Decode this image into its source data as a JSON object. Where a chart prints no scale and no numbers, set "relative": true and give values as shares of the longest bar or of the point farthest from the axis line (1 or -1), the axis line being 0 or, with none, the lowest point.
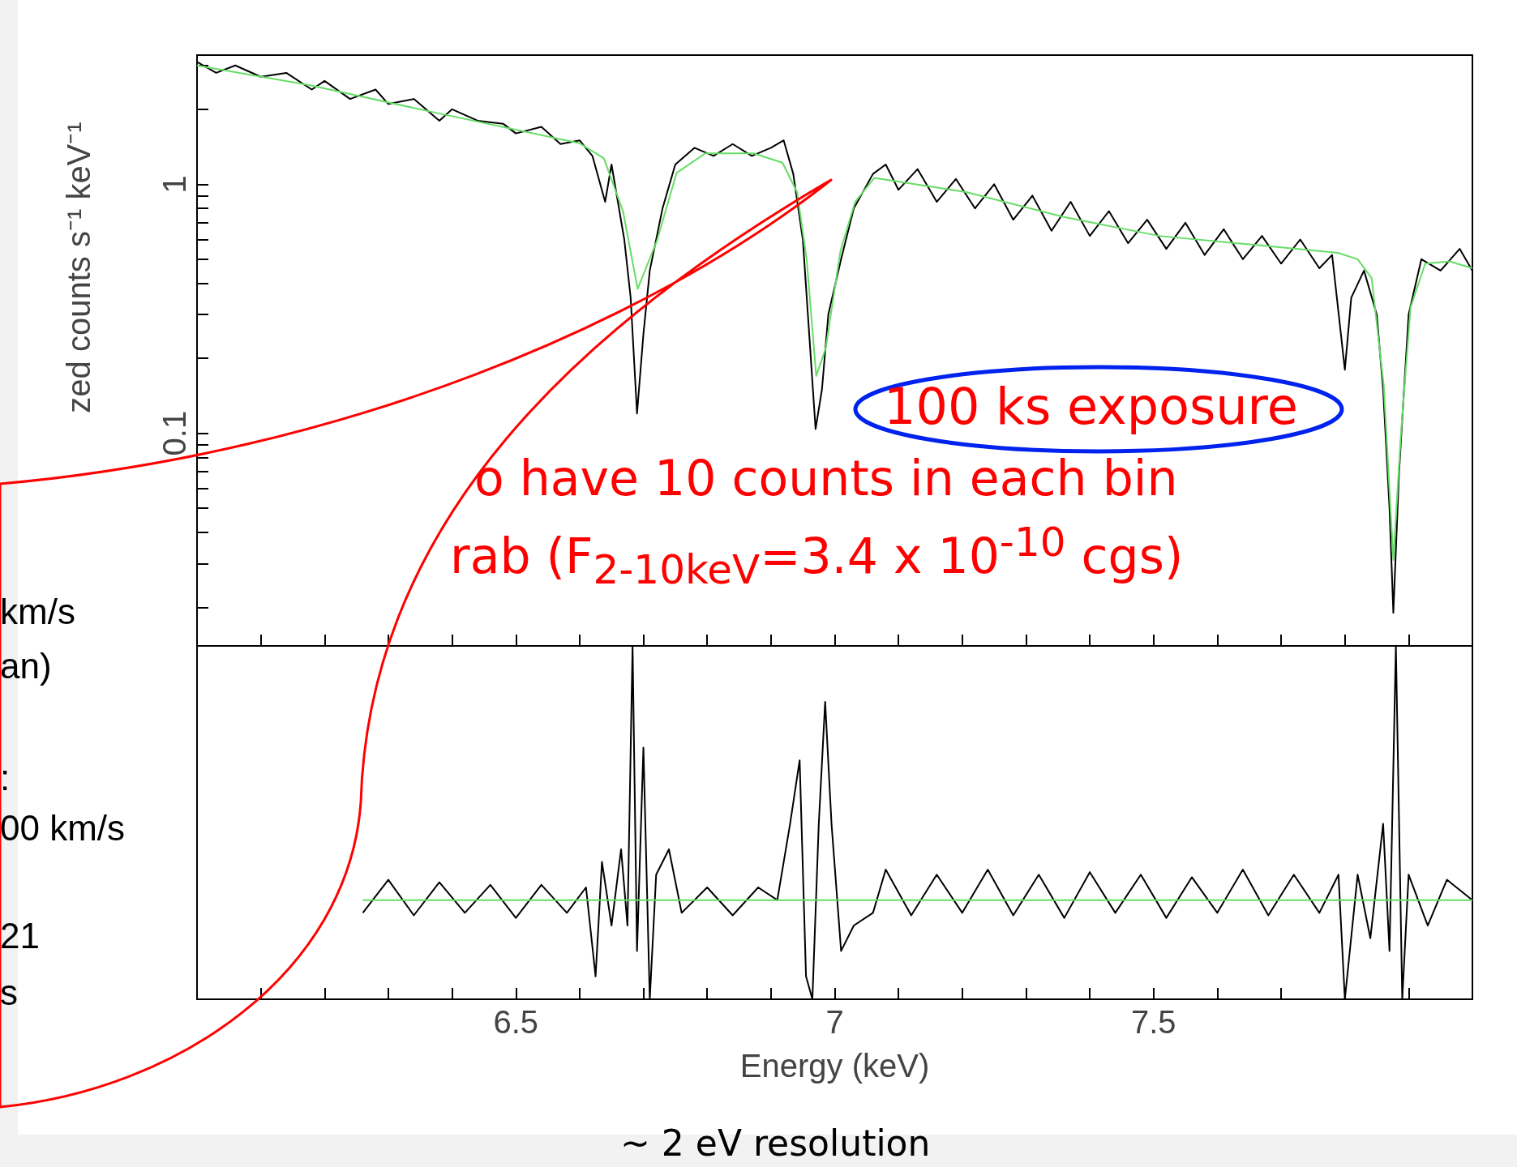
{
  "chart_data": [
    {
      "type": "line",
      "ylabel": "zed counts s⁻¹ keV⁻¹",
      "log": true,
      "tick_labels": "y",
      "xlim": [
        6,
        8
      ],
      "ylim": [
        0.014,
        3.3
      ],
      "xticks": [
        {
          "value": 6.1,
          "label": null
        },
        {
          "value": 6.2,
          "label": null
        },
        {
          "value": 6.3,
          "label": null
        },
        {
          "value": 6.4,
          "label": null
        },
        {
          "value": 6.5,
          "label": null
        },
        {
          "value": 6.6,
          "label": null
        },
        {
          "value": 6.7,
          "label": null
        },
        {
          "value": 6.8,
          "label": null
        },
        {
          "value": 6.9,
          "label": null
        },
        {
          "value": 7,
          "label": null
        },
        {
          "value": 7.1,
          "label": null
        },
        {
          "value": 7.2,
          "label": null
        },
        {
          "value": 7.3,
          "label": null
        },
        {
          "value": 7.4,
          "label": null
        },
        {
          "value": 7.5,
          "label": null
        },
        {
          "value": 7.6,
          "label": null
        },
        {
          "value": 7.7,
          "label": null
        },
        {
          "value": 7.8,
          "label": null
        },
        {
          "value": 7.9,
          "label": null
        }
      ],
      "yticks": [
        {
          "value": 0.02,
          "label": null
        },
        {
          "value": 0.03,
          "label": null
        },
        {
          "value": 0.04,
          "label": null
        },
        {
          "value": 0.05,
          "label": null
        },
        {
          "value": 0.06,
          "label": null
        },
        {
          "value": 0.07,
          "label": null
        },
        {
          "value": 0.08,
          "label": null
        },
        {
          "value": 0.09,
          "label": null
        },
        {
          "value": 0.1,
          "label": "0.1"
        },
        {
          "value": 0.2,
          "label": null
        },
        {
          "value": 0.3,
          "label": null
        },
        {
          "value": 0.4,
          "label": null
        },
        {
          "value": 0.5,
          "label": null
        },
        {
          "value": 0.6,
          "label": null
        },
        {
          "value": 0.7,
          "label": null
        },
        {
          "value": 0.8,
          "label": null
        },
        {
          "value": 0.9,
          "label": null
        },
        {
          "value": 1,
          "label": "1"
        },
        {
          "value": 2,
          "label": null
        },
        {
          "value": 3,
          "label": null
        }
      ],
      "series": [
        {
          "color": "#000000",
          "x": [
            6.0,
            6.03,
            6.06,
            6.1,
            6.14,
            6.18,
            6.2,
            6.24,
            6.28,
            6.3,
            6.34,
            6.38,
            6.4,
            6.44,
            6.48,
            6.5,
            6.54,
            6.57,
            6.6,
            6.62,
            6.64,
            6.65,
            6.67,
            6.68,
            6.69,
            6.7,
            6.71,
            6.73,
            6.75,
            6.78,
            6.81,
            6.84,
            6.87,
            6.9,
            6.92,
            6.935,
            6.95,
            6.96,
            6.97,
            6.98,
            6.99,
            7.01,
            7.03,
            7.06,
            7.08,
            7.1,
            7.13,
            7.16,
            7.19,
            7.22,
            7.25,
            7.28,
            7.31,
            7.34,
            7.37,
            7.4,
            7.43,
            7.46,
            7.49,
            7.52,
            7.55,
            7.58,
            7.61,
            7.64,
            7.67,
            7.7,
            7.73,
            7.76,
            7.78,
            7.8,
            7.81,
            7.83,
            7.85,
            7.86,
            7.87,
            7.876,
            7.885,
            7.9,
            7.92,
            7.95,
            7.98,
            8.0
          ],
          "values": [
            3.1,
            2.8,
            3.0,
            2.7,
            2.8,
            2.4,
            2.6,
            2.2,
            2.4,
            2.1,
            2.2,
            1.8,
            2.0,
            1.8,
            1.75,
            1.6,
            1.7,
            1.45,
            1.5,
            1.3,
            0.85,
            1.2,
            0.6,
            0.35,
            0.12,
            0.25,
            0.45,
            0.8,
            1.2,
            1.4,
            1.3,
            1.45,
            1.3,
            1.4,
            1.5,
            1.1,
            0.6,
            0.25,
            0.104,
            0.15,
            0.3,
            0.5,
            0.8,
            1.1,
            1.2,
            0.95,
            1.15,
            0.85,
            1.05,
            0.8,
            1.0,
            0.72,
            0.9,
            0.65,
            0.85,
            0.62,
            0.78,
            0.58,
            0.72,
            0.55,
            0.7,
            0.52,
            0.66,
            0.5,
            0.62,
            0.48,
            0.6,
            0.46,
            0.52,
            0.18,
            0.35,
            0.45,
            0.3,
            0.15,
            0.05,
            0.019,
            0.07,
            0.3,
            0.5,
            0.45,
            0.55,
            0.45
          ]
        },
        {
          "color": "#66dd66",
          "x": [
            6.0,
            6.176,
            6.373,
            6.6,
            6.638,
            6.668,
            6.691,
            6.721,
            6.752,
            6.797,
            6.873,
            6.918,
            6.941,
            6.956,
            6.971,
            6.986,
            7.009,
            7.032,
            7.062,
            7.206,
            7.358,
            7.509,
            7.661,
            7.789,
            7.82,
            7.842,
            7.861,
            7.876,
            7.888,
            7.903,
            7.926,
            7.964,
            8.0
          ],
          "values": [
            3.0,
            2.5,
            1.94,
            1.46,
            1.27,
            0.78,
            0.38,
            0.59,
            1.11,
            1.33,
            1.33,
            1.22,
            0.93,
            0.5,
            0.17,
            0.22,
            0.54,
            0.85,
            1.06,
            0.93,
            0.74,
            0.62,
            0.57,
            0.53,
            0.5,
            0.42,
            0.155,
            0.031,
            0.1,
            0.32,
            0.48,
            0.49,
            0.46
          ]
        }
      ],
      "annotations": [
        "100 ks exposure",
        "o have 10 counts in each bin",
        "rab (F$_{2-10keV}$=3.4 x 10$^{-10}$ cgs)",
        "km/s",
        "an)",
        ":",
        "00 km/s",
        "21",
        "s"
      ]
    },
    {
      "type": "line",
      "relative": true,
      "tick_labels": "x",
      "xlabel": "Energy (keV)",
      "xlim": [
        6,
        8
      ],
      "xticks": [
        {
          "value": 6.1,
          "label": null
        },
        {
          "value": 6.2,
          "label": null
        },
        {
          "value": 6.3,
          "label": null
        },
        {
          "value": 6.4,
          "label": null
        },
        6.5,
        {
          "value": 6.6,
          "label": null
        },
        {
          "value": 6.7,
          "label": null
        },
        {
          "value": 6.8,
          "label": null
        },
        {
          "value": 6.9,
          "label": null
        },
        7,
        {
          "value": 7.1,
          "label": null
        },
        {
          "value": 7.2,
          "label": null
        },
        {
          "value": 7.3,
          "label": null
        },
        {
          "value": 7.4,
          "label": null
        },
        7.5,
        {
          "value": 7.6,
          "label": null
        },
        {
          "value": 7.7,
          "label": null
        },
        {
          "value": 7.8,
          "label": null
        },
        {
          "value": 7.9,
          "label": null
        }
      ],
      "series": [
        {
          "color": "#000000",
          "x": [
            6.26,
            6.3,
            6.34,
            6.38,
            6.42,
            6.46,
            6.5,
            6.54,
            6.58,
            6.61,
            6.625,
            6.635,
            6.65,
            6.665,
            6.675,
            6.683,
            6.69,
            6.7,
            6.71,
            6.72,
            6.74,
            6.76,
            6.8,
            6.84,
            6.88,
            6.91,
            6.93,
            6.945,
            6.955,
            6.965,
            6.975,
            6.985,
            6.995,
            7.01,
            7.03,
            7.06,
            7.08,
            7.12,
            7.16,
            7.2,
            7.24,
            7.28,
            7.32,
            7.36,
            7.4,
            7.44,
            7.48,
            7.52,
            7.56,
            7.6,
            7.64,
            7.68,
            7.72,
            7.76,
            7.79,
            7.8,
            7.82,
            7.84,
            7.86,
            7.87,
            7.88,
            7.89,
            7.9,
            7.93,
            7.96,
            8.0
          ],
          "values": [
            -0.05,
            0.08,
            -0.06,
            0.07,
            -0.05,
            0.06,
            -0.07,
            0.06,
            -0.05,
            0.05,
            -0.3,
            0.15,
            -0.1,
            0.2,
            -0.1,
            1,
            -0.2,
            0.6,
            -0.39,
            0.1,
            0.2,
            -0.05,
            0.05,
            -0.06,
            0.05,
            0.0,
            0.3,
            0.55,
            -0.3,
            -0.39,
            0.3,
            0.78,
            0.3,
            -0.2,
            -0.1,
            -0.05,
            0.12,
            -0.06,
            0.1,
            -0.05,
            0.12,
            -0.06,
            0.1,
            -0.07,
            0.11,
            -0.05,
            0.1,
            -0.07,
            0.09,
            -0.05,
            0.12,
            -0.06,
            0.1,
            -0.05,
            0.1,
            -0.39,
            0.1,
            -0.15,
            0.3,
            -0.2,
            1,
            -0.39,
            0.1,
            -0.1,
            0.08,
            0.0
          ]
        },
        {
          "color": "#66dd66",
          "x": [
            6.26,
            8.0
          ],
          "values": [
            0,
            0
          ]
        }
      ],
      "annotations": [
        "~ 2 eV resolution"
      ]
    }
  ]
}
